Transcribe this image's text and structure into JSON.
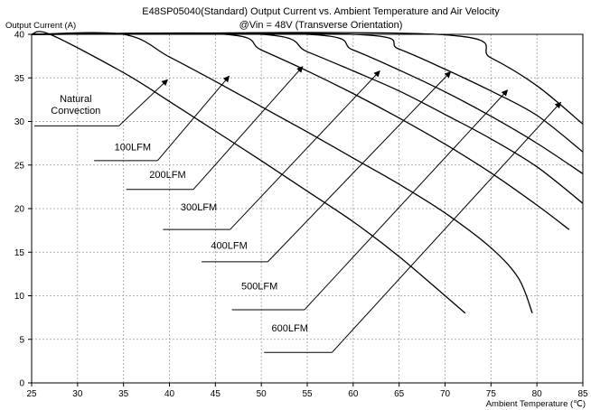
{
  "chart_data": {
    "type": "line",
    "title": "E48SP05040(Standard)  Output Current vs. Ambient Temperature and Air Velocity",
    "subtitle": "@Vin = 48V (Transverse Orientation)",
    "ylabel": "Output Current (A)",
    "xlabel": "Ambient Temperature (℃)",
    "xlim": [
      25,
      85
    ],
    "ylim": [
      0,
      40
    ],
    "x_ticks": [
      "25",
      "30",
      "35",
      "40",
      "45",
      "50",
      "55",
      "60",
      "65",
      "70",
      "75",
      "80",
      "85"
    ],
    "y_ticks": [
      "0",
      "5",
      "10",
      "15",
      "20",
      "25",
      "30",
      "35",
      "40"
    ],
    "grid": true,
    "series": [
      {
        "name": "Natural Convection",
        "label_lines": [
          "Natural",
          "Convection"
        ],
        "points": [
          [
            25,
            40
          ],
          [
            27,
            40
          ],
          [
            35,
            35.6
          ],
          [
            40,
            32.3
          ],
          [
            45,
            28.9
          ],
          [
            50,
            25.5
          ],
          [
            55,
            22
          ],
          [
            60,
            18.5
          ],
          [
            65,
            14.5
          ],
          [
            70,
            10
          ],
          [
            72.2,
            8
          ]
        ]
      },
      {
        "name": "100LFM",
        "label_lines": [
          "100LFM"
        ],
        "points": [
          [
            25,
            40
          ],
          [
            35,
            40
          ],
          [
            40,
            37.4
          ],
          [
            45,
            34.6
          ],
          [
            50,
            31.7
          ],
          [
            55,
            28.8
          ],
          [
            60,
            25.8
          ],
          [
            65,
            22.8
          ],
          [
            70,
            19.5
          ],
          [
            75,
            15.5
          ],
          [
            78,
            12
          ],
          [
            79.5,
            8
          ]
        ]
      },
      {
        "name": "200LFM",
        "label_lines": [
          "200LFM"
        ],
        "points": [
          [
            25,
            40
          ],
          [
            46,
            40
          ],
          [
            50,
            38.2
          ],
          [
            55,
            35.8
          ],
          [
            60,
            33.2
          ],
          [
            65,
            30.4
          ],
          [
            70,
            27.4
          ],
          [
            75,
            24.1
          ],
          [
            80,
            20.4
          ],
          [
            83.5,
            17.6
          ]
        ]
      },
      {
        "name": "300LFM",
        "label_lines": [
          "300LFM"
        ],
        "points": [
          [
            25,
            40
          ],
          [
            50,
            40
          ],
          [
            55,
            38
          ],
          [
            60,
            35.8
          ],
          [
            65,
            33.5
          ],
          [
            70,
            30.8
          ],
          [
            75,
            28
          ],
          [
            80,
            24.8
          ],
          [
            85,
            20.6
          ]
        ]
      },
      {
        "name": "400LFM",
        "label_lines": [
          "400LFM"
        ],
        "points": [
          [
            25,
            40
          ],
          [
            55,
            40
          ],
          [
            60,
            38.2
          ],
          [
            65,
            35.9
          ],
          [
            70,
            33.4
          ],
          [
            75,
            30.6
          ],
          [
            80,
            27.5
          ],
          [
            85,
            24
          ]
        ]
      },
      {
        "name": "500LFM",
        "label_lines": [
          "500LFM"
        ],
        "points": [
          [
            25,
            40
          ],
          [
            60,
            40
          ],
          [
            65,
            38.3
          ],
          [
            70,
            36
          ],
          [
            75,
            33.5
          ],
          [
            80,
            30.7
          ],
          [
            85,
            26.5
          ]
        ]
      },
      {
        "name": "600LFM",
        "label_lines": [
          "600LFM"
        ],
        "points": [
          [
            25,
            40
          ],
          [
            69,
            40
          ],
          [
            75,
            37.3
          ],
          [
            80,
            34.1
          ],
          [
            85,
            29.7
          ]
        ]
      }
    ],
    "annotations": [
      {
        "series": "Natural Convection",
        "label_at": [
          29.8,
          30.9
        ],
        "line_from": [
          25.3,
          29.5
        ],
        "line_to": [
          34.5,
          29.5
        ],
        "arrow_to": [
          39.8,
          34.8
        ]
      },
      {
        "series": "100LFM",
        "label_at": [
          36,
          26.7
        ],
        "line_from": [
          31.8,
          25.5
        ],
        "line_to": [
          38.7,
          25.5
        ],
        "arrow_to": [
          46.5,
          35.2
        ]
      },
      {
        "series": "200LFM",
        "label_at": [
          39.8,
          23.5
        ],
        "line_from": [
          35.3,
          22.2
        ],
        "line_to": [
          42.6,
          22.2
        ],
        "arrow_to": [
          54.5,
          36.3
        ]
      },
      {
        "series": "300LFM",
        "label_at": [
          43.2,
          19.8
        ],
        "line_from": [
          39.3,
          17.6
        ],
        "line_to": [
          46.6,
          17.6
        ],
        "arrow_to": [
          62.9,
          35.8
        ]
      },
      {
        "series": "400LFM",
        "label_at": [
          46.5,
          15.4
        ],
        "line_from": [
          43.5,
          13.9
        ],
        "line_to": [
          50.7,
          13.9
        ],
        "arrow_to": [
          70.6,
          35.7
        ]
      },
      {
        "series": "500LFM",
        "label_at": [
          49.8,
          10.7
        ],
        "line_from": [
          46.8,
          8.4
        ],
        "line_to": [
          54.7,
          8.4
        ],
        "arrow_to": [
          76.8,
          33.6
        ]
      },
      {
        "series": "600LFM",
        "label_at": [
          53.1,
          5.9
        ],
        "line_from": [
          50.3,
          3.5
        ],
        "line_to": [
          57.7,
          3.5
        ],
        "arrow_to": [
          82.6,
          32.2
        ]
      }
    ]
  }
}
